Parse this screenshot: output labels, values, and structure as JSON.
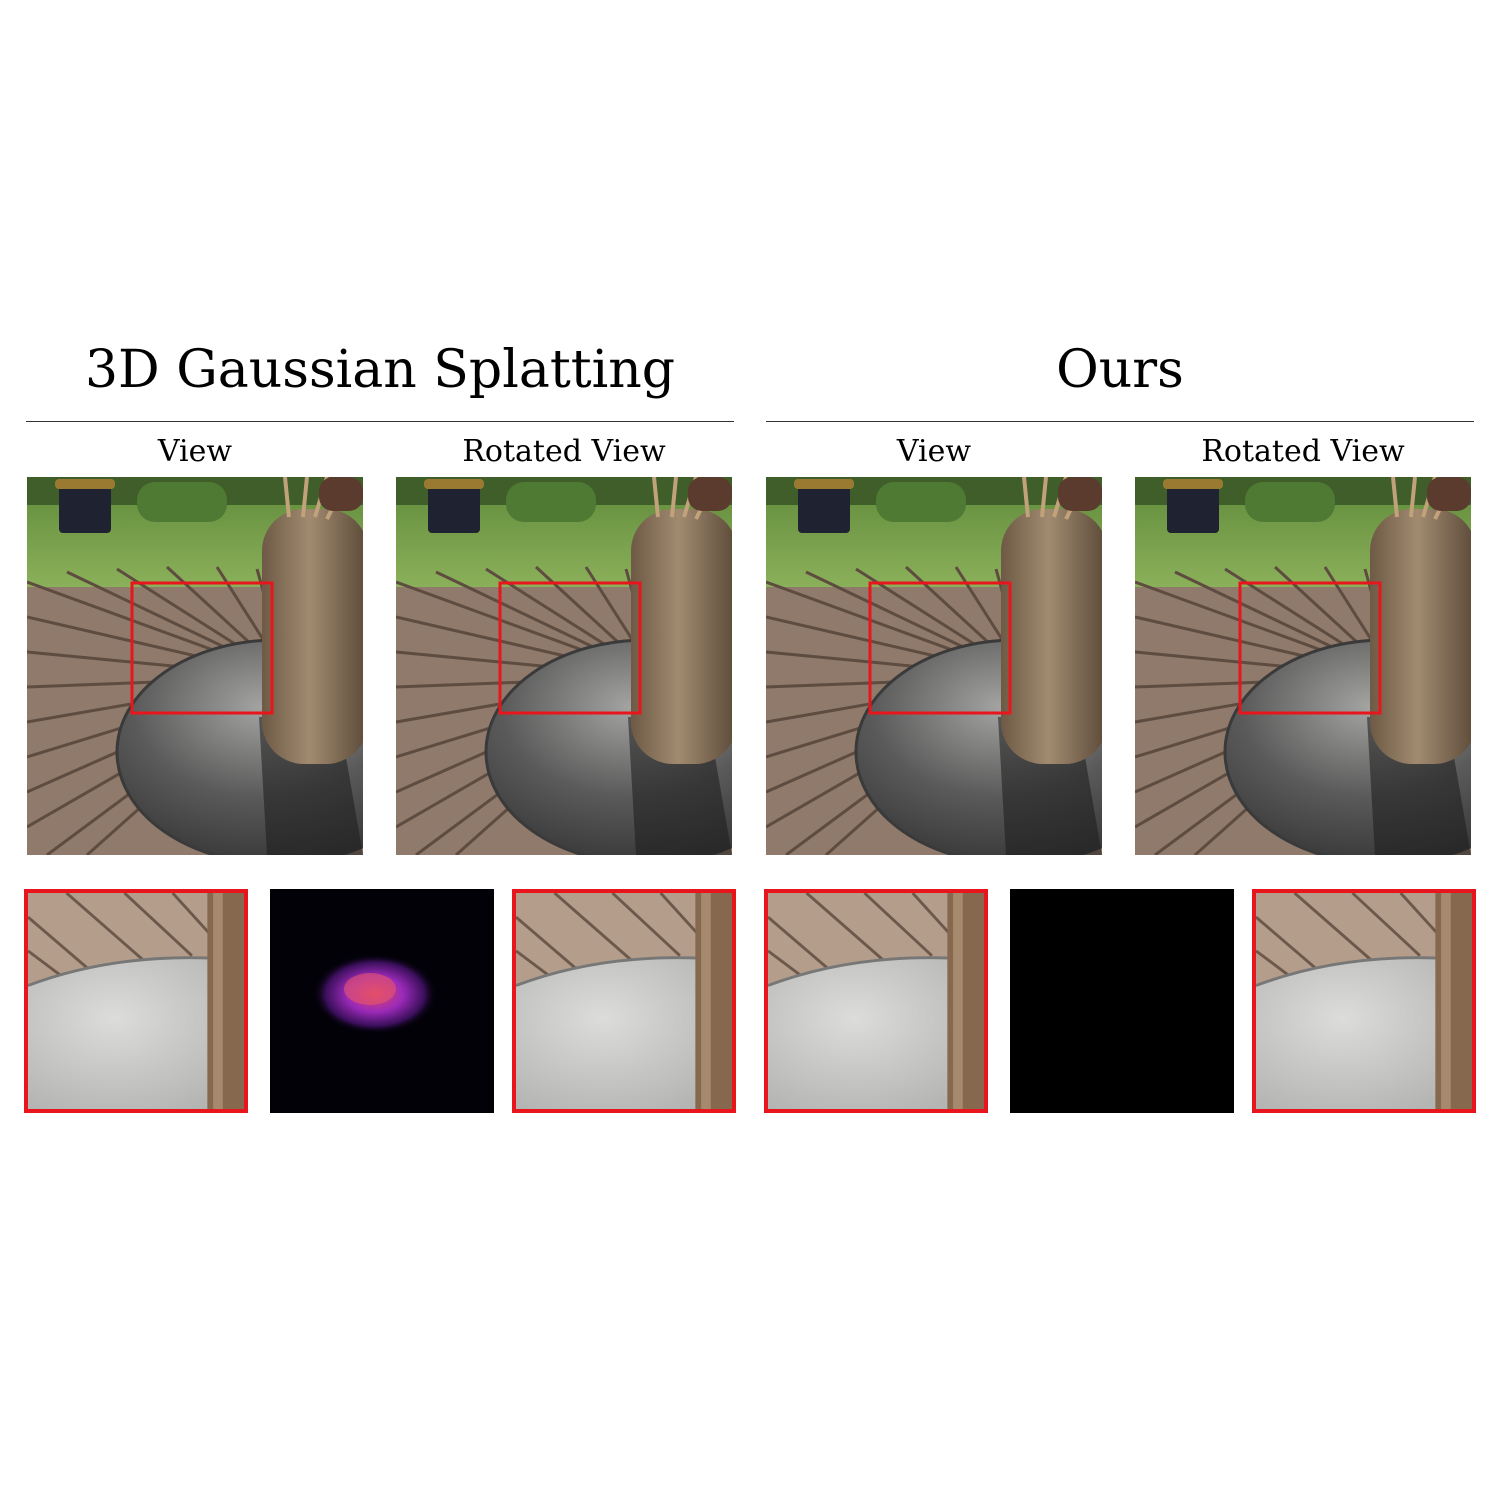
{
  "groups": [
    {
      "title": "3D Gaussian Splatting",
      "views": [
        "View",
        "Rotated View"
      ]
    },
    {
      "title": "Ours",
      "views": [
        "View",
        "Rotated View"
      ]
    }
  ],
  "colors": {
    "highlight_box": "#e8161c",
    "rule": "#333333"
  }
}
